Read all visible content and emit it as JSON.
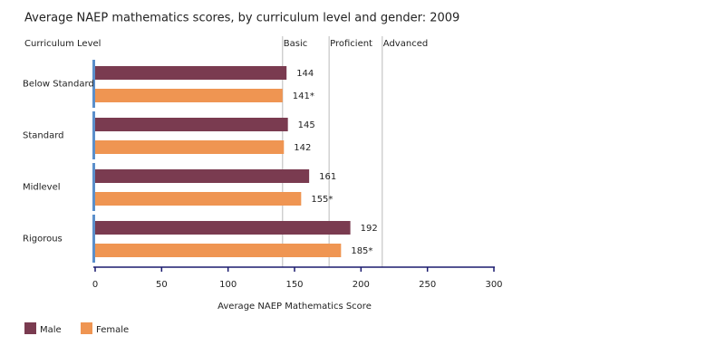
{
  "chart_data": {
    "type": "bar",
    "orientation": "horizontal",
    "title": "Average NAEP mathematics scores, by curriculum level and gender: 2009",
    "category_axis_label": "Curriculum Level",
    "x_axis_label": "Average NAEP Mathematics Score",
    "categories": [
      "Below Standard",
      "Standard",
      "Midlevel",
      "Rigorous"
    ],
    "series": [
      {
        "name": "Male",
        "color": "#7a3b50",
        "values": [
          144,
          145,
          161,
          192
        ],
        "value_labels": [
          "144",
          "145",
          "161",
          "192"
        ]
      },
      {
        "name": "Female",
        "color": "#ef9552",
        "values": [
          141,
          142,
          155,
          185
        ],
        "value_labels": [
          "141*",
          "142",
          "155*",
          "185*"
        ]
      }
    ],
    "xlim": [
      0,
      300
    ],
    "xticks": [
      0,
      50,
      100,
      150,
      200,
      250,
      300
    ],
    "reference_lines": [
      {
        "value": 141,
        "label": "Basic"
      },
      {
        "value": 176,
        "label": "Proficient"
      },
      {
        "value": 216,
        "label": "Advanced"
      }
    ]
  }
}
